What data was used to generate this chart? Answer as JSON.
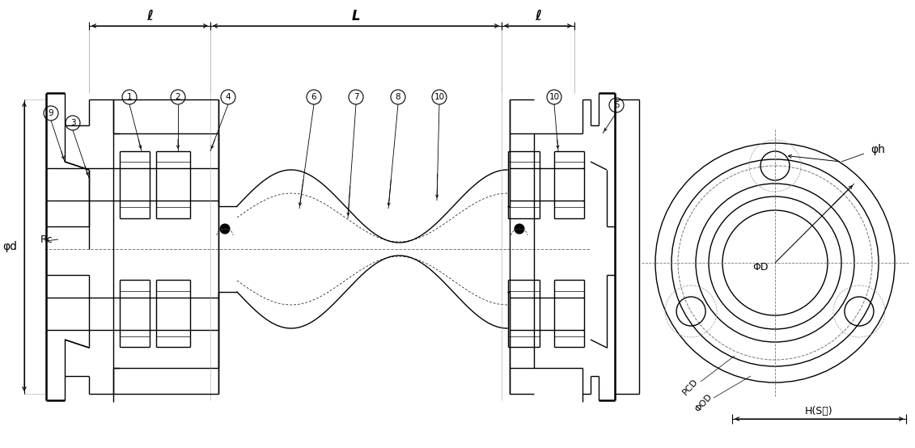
{
  "bg_color": "#ffffff",
  "line_color": "#000000",
  "fig_width": 11.31,
  "fig_height": 5.54,
  "labels": {
    "ell": "ℓ",
    "L": "L",
    "phi_d": "φd",
    "phi_h": "φh",
    "phi_D": "ΦD",
    "phi_OD": "ΦOD",
    "PCD": "PCD",
    "H_S": "H(S角)",
    "Rc": "Rc"
  }
}
